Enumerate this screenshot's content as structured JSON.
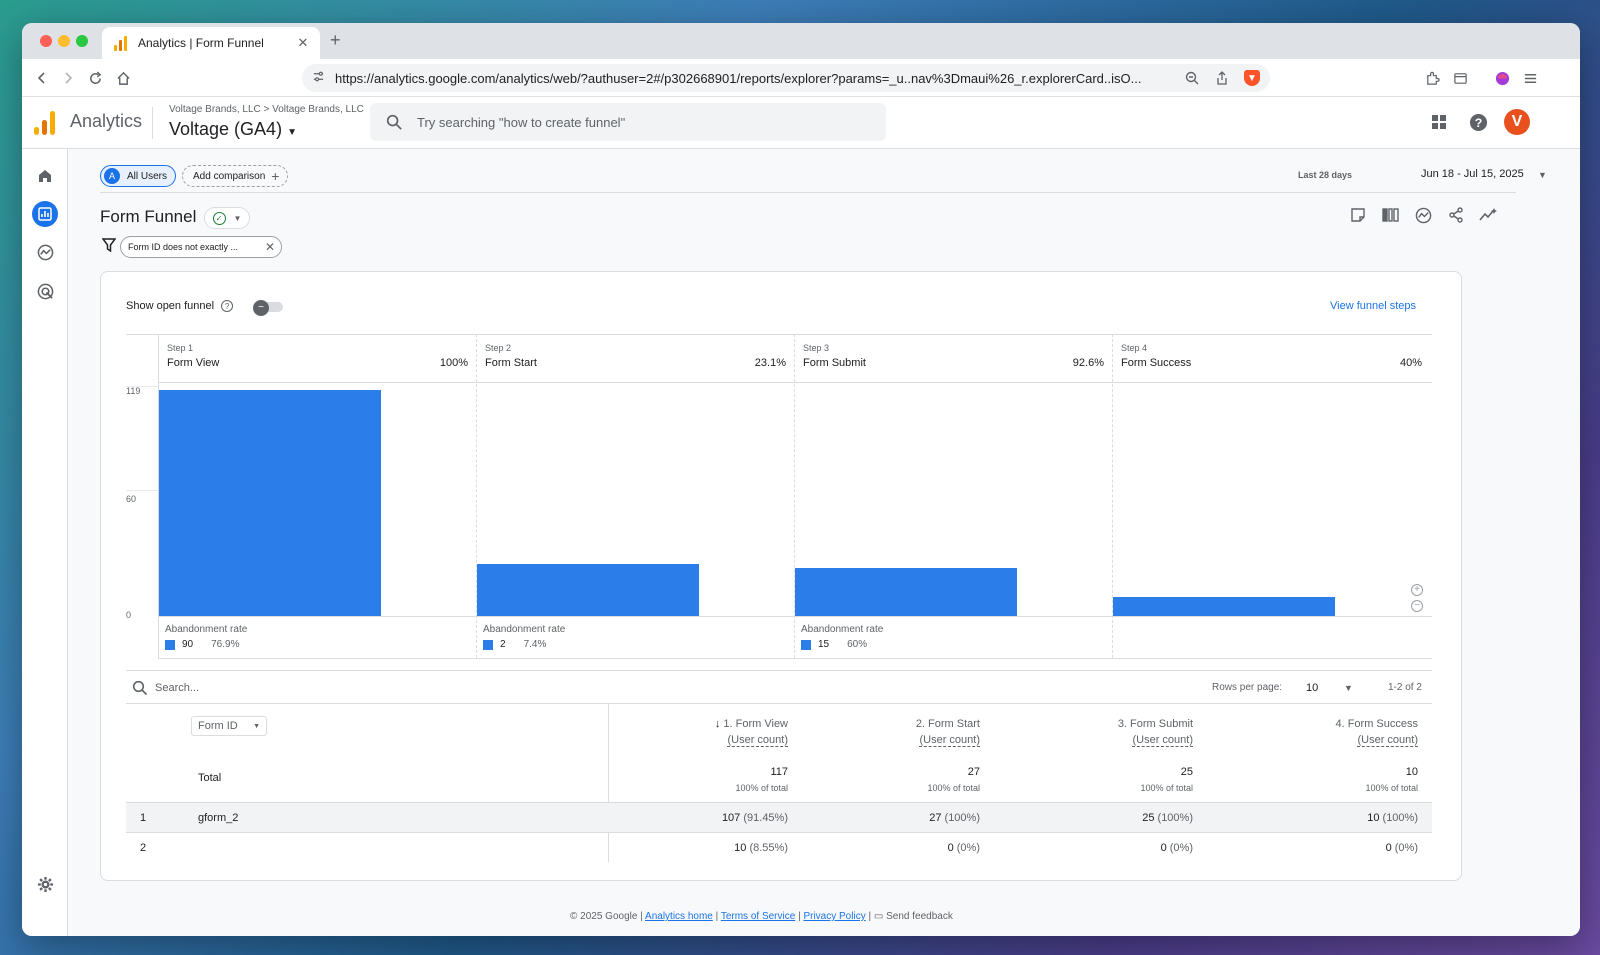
{
  "browser": {
    "tab_title": "Analytics | Form Funnel",
    "url": "https://analytics.google.com/analytics/web/?authuser=2#/p302668901/reports/explorer?params=_u..nav%3Dmaui%26_r.explorerCard..isO...",
    "favicon_colors": [
      "#f9ab00",
      "#e37400",
      "#f9ab00"
    ]
  },
  "header": {
    "app_name": "Analytics",
    "breadcrumb": "Voltage Brands, LLC > Voltage Brands, LLC",
    "property": "Voltage (GA4)",
    "search_placeholder": "Try searching \"how to create funnel\"",
    "avatar_letter": "V",
    "avatar_color": "#e8511e"
  },
  "comparison": {
    "all_users_letter": "A",
    "all_users_label": "All Users",
    "add_comparison_label": "Add comparison"
  },
  "date": {
    "label": "Last 28 days",
    "range": "Jun 18 - Jul 15, 2025"
  },
  "report": {
    "title": "Form Funnel",
    "filter": "Form ID does not exactly ..."
  },
  "card": {
    "show_open_funnel": "Show open funnel",
    "view_funnel_steps": "View funnel steps"
  },
  "chart_data": {
    "type": "bar",
    "y_ticks": [
      "119",
      "60",
      "0"
    ],
    "ylim": [
      0,
      119
    ],
    "bar_color": "#2b7de9",
    "abandonment_label": "Abandonment rate",
    "steps": [
      {
        "step": "Step 1",
        "name": "Form View",
        "pct": "100%",
        "value": 117,
        "abandon_count": "90",
        "abandon_rate": "76.9%"
      },
      {
        "step": "Step 2",
        "name": "Form Start",
        "pct": "23.1%",
        "value": 27,
        "abandon_count": "2",
        "abandon_rate": "7.4%"
      },
      {
        "step": "Step 3",
        "name": "Form Submit",
        "pct": "92.6%",
        "value": 25,
        "abandon_count": "15",
        "abandon_rate": "60%"
      },
      {
        "step": "Step 4",
        "name": "Form Success",
        "pct": "40%",
        "value": 10,
        "abandon_count": null,
        "abandon_rate": null
      }
    ]
  },
  "table": {
    "search_placeholder": "Search...",
    "rows_per_page_label": "Rows per page:",
    "rows_per_page": "10",
    "pagination": "1-2 of 2",
    "dimension_label": "Form ID",
    "total_label": "Total",
    "columns": [
      {
        "title": "1. Form View",
        "sub": "(User count)",
        "total": "117",
        "total_pct": "100% of total",
        "sorted": true
      },
      {
        "title": "2. Form Start",
        "sub": "(User count)",
        "total": "27",
        "total_pct": "100% of total",
        "sorted": false
      },
      {
        "title": "3. Form Submit",
        "sub": "(User count)",
        "total": "25",
        "total_pct": "100% of total",
        "sorted": false
      },
      {
        "title": "4. Form Success",
        "sub": "(User count)",
        "total": "10",
        "total_pct": "100% of total",
        "sorted": false
      }
    ],
    "rows": [
      {
        "index": "1",
        "dim": "gform_2",
        "cells": [
          [
            "107",
            "(91.45%)"
          ],
          [
            "27",
            "(100%)"
          ],
          [
            "25",
            "(100%)"
          ],
          [
            "10",
            "(100%)"
          ]
        ]
      },
      {
        "index": "2",
        "dim": "",
        "cells": [
          [
            "10",
            "(8.55%)"
          ],
          [
            "0",
            "(0%)"
          ],
          [
            "0",
            "(0%)"
          ],
          [
            "0",
            "(0%)"
          ]
        ]
      }
    ]
  },
  "footer": {
    "copyright": "© 2025 Google |",
    "links": [
      "Analytics home",
      "Terms of Service",
      "Privacy Policy"
    ],
    "feedback": "Send feedback"
  }
}
